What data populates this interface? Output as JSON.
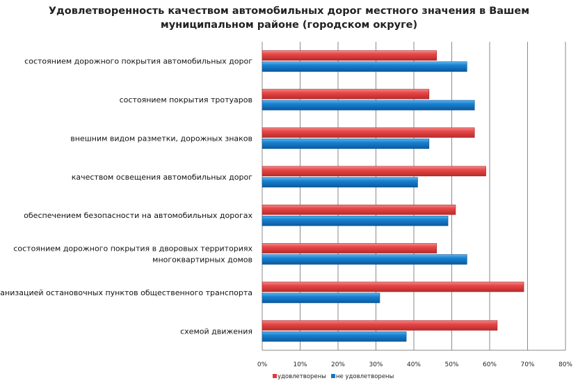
{
  "chart_data": {
    "type": "bar",
    "orientation": "horizontal",
    "title": "Удовлетворенность качеством автомобильных дорог местного значения в Вашем муниципальном районе (городском округе)",
    "title_lines": [
      "Удовлетворенность качеством автомобильных дорог местного значения в Вашем",
      "муниципальном районе (городском округе)"
    ],
    "categories": [
      [
        "состоянием дорожного покрытия автомобильных дорог"
      ],
      [
        "состоянием покрытия тротуаров"
      ],
      [
        "внешним  видом разметки, дорожных знаков"
      ],
      [
        "качеством освещения автомобильных дорог"
      ],
      [
        "обеспечением  безопасности на автомобильных дорогах"
      ],
      [
        "состоянием дорожного покрытия в дворовых территориях",
        "многоквартирных домов"
      ],
      [
        "организацией остановочных пунктов общественного транспорта"
      ],
      [
        "схемой движения"
      ]
    ],
    "series": [
      {
        "name": "удовлетворены",
        "color": "#e03c3c",
        "values": [
          46,
          44,
          56,
          59,
          51,
          46,
          69,
          62
        ]
      },
      {
        "name": "не удовлетворены",
        "color": "#1577c8",
        "values": [
          54,
          56,
          44,
          41,
          49,
          54,
          31,
          38
        ]
      }
    ],
    "xlim": [
      0,
      80
    ],
    "xticks": [
      "0%",
      "10%",
      "20%",
      "30%",
      "40%",
      "50%",
      "60%",
      "70%",
      "80%"
    ],
    "grid": true,
    "legend_position": "bottom-left"
  }
}
